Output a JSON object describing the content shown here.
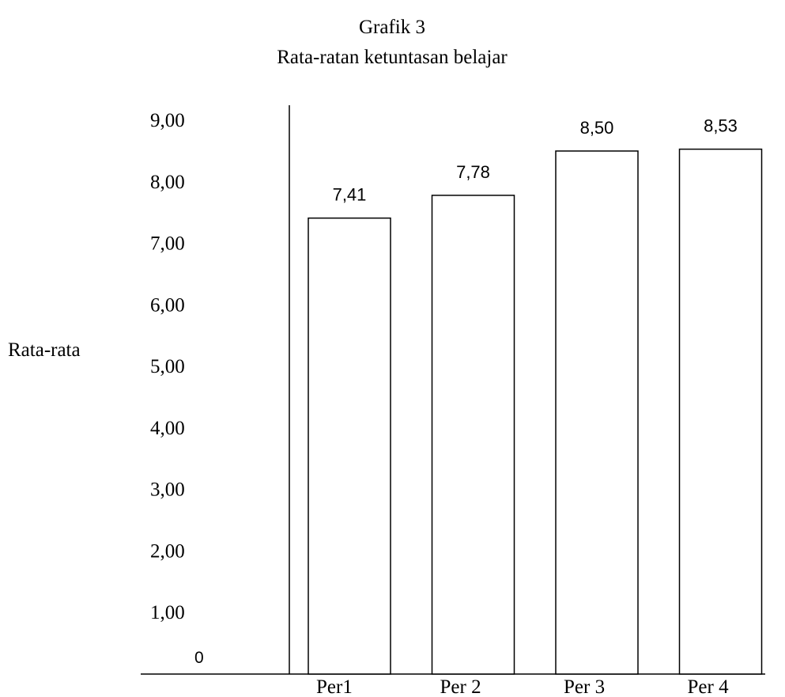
{
  "chart_data": {
    "type": "bar",
    "title": "Grafik 3",
    "subtitle": "Rata-ratan ketuntasan belajar",
    "ylabel": "Rata-rata",
    "xlabel": "",
    "categories": [
      "Per1",
      "Per 2",
      "Per 3",
      "Per 4"
    ],
    "values": [
      7.41,
      7.78,
      8.5,
      8.53
    ],
    "value_labels": [
      "7,41",
      "7,78",
      "8,50",
      "8,53"
    ],
    "y_ticks": [
      0,
      1,
      2,
      3,
      4,
      5,
      6,
      7,
      8,
      9
    ],
    "y_tick_labels": [
      "0",
      "1,00",
      "2,00",
      "3,00",
      "4,00",
      "5,00",
      "6,00",
      "7,00",
      "8,00",
      "9,00"
    ],
    "ylim": [
      0,
      9
    ],
    "grid": false,
    "legend": "none",
    "bar_fill": "#ffffff",
    "bar_stroke": "#000000"
  }
}
